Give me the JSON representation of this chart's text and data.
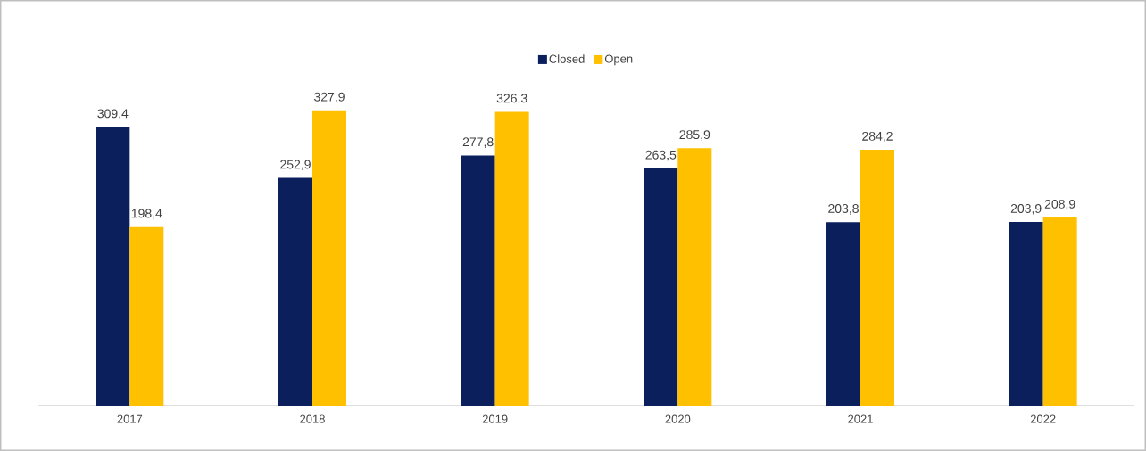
{
  "chart_data": {
    "type": "bar",
    "categories": [
      "2017",
      "2018",
      "2019",
      "2020",
      "2021",
      "2022"
    ],
    "series": [
      {
        "name": "Closed",
        "color": "#0b1f5c",
        "values": [
          309.4,
          252.9,
          277.8,
          263.5,
          203.8,
          203.9
        ],
        "value_labels": [
          "309,4",
          "252,9",
          "277,8",
          "263,5",
          "203,8",
          "203,9"
        ]
      },
      {
        "name": "Open",
        "color": "#ffc000",
        "values": [
          198.4,
          327.9,
          326.3,
          285.9,
          284.2,
          208.9
        ],
        "value_labels": [
          "198,4",
          "327,9",
          "326,3",
          "285,9",
          "284,2",
          "208,9"
        ]
      }
    ],
    "legend": "top",
    "tick_labels": "x"
  }
}
